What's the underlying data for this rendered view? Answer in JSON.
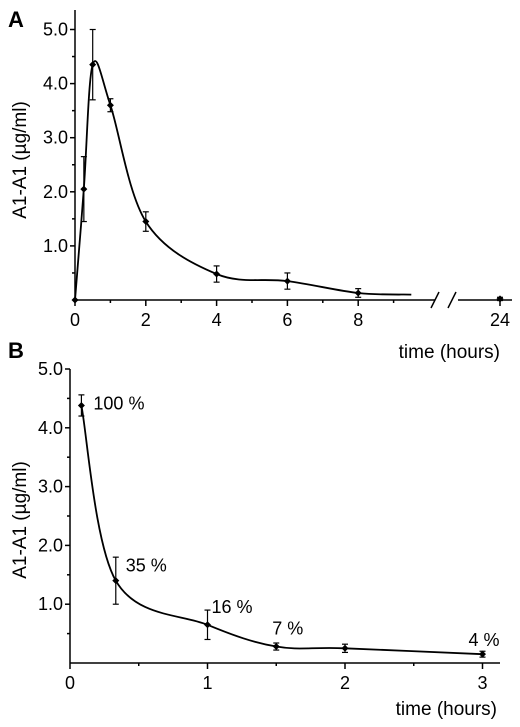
{
  "chart_data": [
    {
      "type": "line",
      "panel_label": "A",
      "title": "",
      "xlabel": "time (hours)",
      "ylabel": "A1-A1 (µg/ml)",
      "xlim": [
        0,
        24
      ],
      "x_break": [
        9.5,
        23
      ],
      "ylim": [
        0,
        5.0
      ],
      "x_ticks": [
        0,
        2,
        4,
        6,
        8,
        24
      ],
      "x_tick_labels": [
        "0",
        "2",
        "4",
        "6",
        "8",
        "24"
      ],
      "y_ticks": [
        1.0,
        2.0,
        3.0,
        4.0,
        5.0
      ],
      "y_tick_labels": [
        "1.0",
        "2.0",
        "3.0",
        "4.0",
        "5.0"
      ],
      "grid": false,
      "series": [
        {
          "x": [
            0,
            0.25,
            0.5,
            1,
            2,
            4,
            6,
            8,
            24
          ],
          "y": [
            0,
            2.05,
            4.35,
            3.6,
            1.45,
            0.48,
            0.35,
            0.13,
            0.02
          ],
          "error": [
            0,
            0.6,
            0.65,
            0.12,
            0.18,
            0.15,
            0.15,
            0.08,
            0.03
          ]
        }
      ]
    },
    {
      "type": "line",
      "panel_label": "B",
      "title": "",
      "xlabel": "time (hours)",
      "ylabel": "A1-A1 (µg/ml)",
      "xlim": [
        0,
        3
      ],
      "ylim": [
        0,
        5.0
      ],
      "x_ticks": [
        0,
        1,
        2,
        3
      ],
      "x_tick_labels": [
        "0",
        "1",
        "2",
        "3"
      ],
      "y_ticks": [
        1.0,
        2.0,
        3.0,
        4.0,
        5.0
      ],
      "y_tick_labels": [
        "1.0",
        "2.0",
        "3.0",
        "4.0",
        "5.0"
      ],
      "grid": false,
      "series": [
        {
          "x": [
            0.083,
            0.333,
            1,
            1.5,
            2,
            3
          ],
          "y": [
            4.38,
            1.4,
            0.65,
            0.28,
            0.25,
            0.15
          ],
          "error": [
            0.18,
            0.4,
            0.25,
            0.06,
            0.07,
            0.05
          ],
          "point_labels": [
            "100 %",
            "35 %",
            "16 %",
            "7 %",
            "",
            "4 %"
          ]
        }
      ]
    }
  ]
}
